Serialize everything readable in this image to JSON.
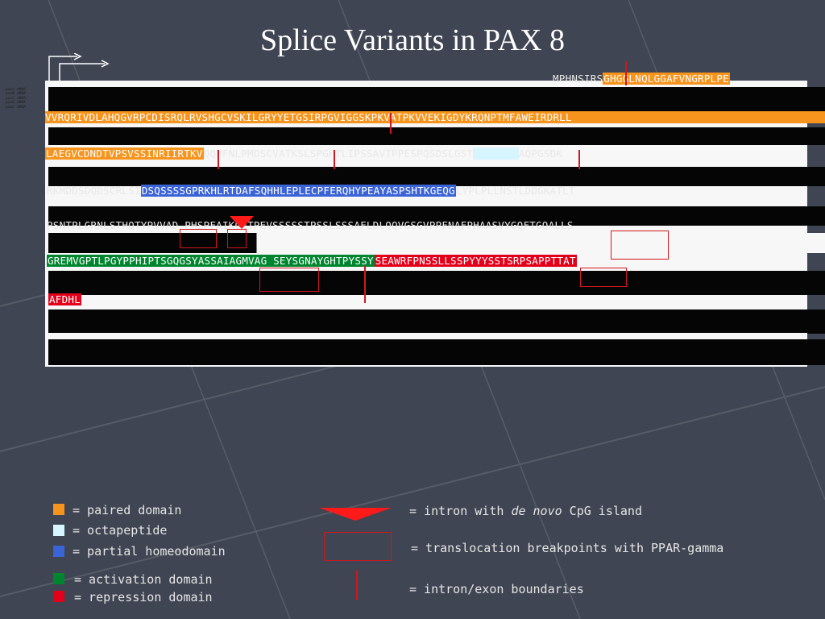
{
  "title": "Splice Variants in PAX 8",
  "protein_lines": {
    "l1": "MPHNSIRSGHGGLNQLGGAFVNGRPLPE",
    "l1_plain": "MPHNSIRS",
    "l1_orange": "GHGGLNQLGGAFVNGRPLPE",
    "l2": "VVRQRIVDLAHQGVRPCDISRQLRVSHGCVSKILGRYYETGSIRPGVIGGSKPKVATPKVVEKIGDYKRQNPTMFAWEIRDRLL",
    "l3_orange": "LAEGVCDNDTVPSVSSINRIIRTKV",
    "l3_plain": "QQPFNLPMDSCVATKSLSPGHTLIPSSAVTPPESPQSDSLGST",
    "l3_cyan": "YSINGLL",
    "l3_end": "AQPGSDK",
    "l4_start": "RKMDDSDQDSCRLSI",
    "l4_blue": "DSQSSSSGPRKHLRTDAFSQHHLEPLECPFERQHYPEAYASPSHTKGEQG",
    "l4_end": "LYPLPLLNSTLDDGKATLT",
    "l5": "PSNTPLGRNLSTHQTYPVVAD PHSPFAIKQETPEVSSSSSTPSSLSSSAFLDLQQVGSGVPPFNAFPHAASVYGQFTGQALLS",
    "l6_green": "GREMVGPTLPGYPPHIPTSGQGSYASSAIAGMVAG SEYSGNAYGHTPYSSY",
    "l6_red": "SEAWRFPNSSLLSSPYYYSSTSRPSAPPTTAT",
    "l7_red": "AFDHL"
  },
  "sequence_names": [
    "paxA mRNA",
    "paxB mRNA",
    "paxC mRNA",
    "paxD mRNA",
    "paxE mRNA"
  ],
  "legend": {
    "paired": "= paired domain",
    "octa": "= octapeptide",
    "homeo": "= partial homeodomain",
    "activation": "= activation domain",
    "repression": "= repression domain",
    "intron_pre": "= intron with ",
    "intron_em": "de novo",
    "intron_post": " CpG island",
    "translocation": "= translocation breakpoints with PPAR-gamma",
    "boundaries": "= intron/exon boundaries"
  },
  "colors": {
    "paired": "#f7941d",
    "octapeptide": "#d6f5ff",
    "homeodomain": "#3a63d6",
    "activation": "#00852f",
    "repression": "#e3001b",
    "marker": "#d0171e"
  }
}
